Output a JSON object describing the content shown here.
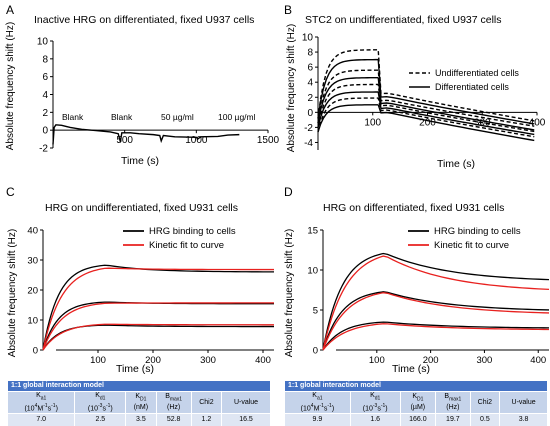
{
  "panels": {
    "A": {
      "letter": "A",
      "title": "Inactive HRG on differentiated, fixed U937 cells",
      "xlabel": "Time (s)",
      "ylabel": "Absolute frequency shift (Hz)",
      "annotations": [
        "Blank",
        "Blank",
        "50 µg/ml",
        "100 µg/ml"
      ]
    },
    "B": {
      "letter": "B",
      "title": "STC2 on undifferentiated, fixed U937 cells",
      "xlabel": "Time (s)",
      "ylabel": "Absolute frequency shift (Hz)",
      "legend": [
        "Undifferentiated cells",
        "Differentiated cells"
      ]
    },
    "C": {
      "letter": "C",
      "title": "HRG on undifferentiated, fixed U931 cells",
      "xlabel": "Time (s)",
      "ylabel": "Absolute frequency shift (Hz)",
      "legend": [
        "HRG binding to cells",
        "Kinetic fit to curve"
      ]
    },
    "D": {
      "letter": "D",
      "title": "HRG on differentiated, fixed U931 cells",
      "xlabel": "Time (s)",
      "ylabel": "Absolute frequency shift (Hz)",
      "legend": [
        "HRG binding to cells",
        "Kinetic fit to curve"
      ]
    }
  },
  "tables": {
    "C": {
      "title": "1:1 global interaction model",
      "values": [
        "7.0",
        "2.5",
        "3.5",
        "52.8",
        "1.2",
        "16.5"
      ]
    },
    "D": {
      "title": "1:1 global interaction model",
      "values": [
        "9.9",
        "1.6",
        "166.0",
        "19.7",
        "0.5",
        "3.8"
      ]
    },
    "units": {
      "ka1": "(10",
      "ka1_sup": "4",
      "ka1_tail": "M",
      "ka1_tail_sup": "-1",
      "ka1_end": "s",
      "ka1_end_sup": "-1",
      "ka1_close": ")",
      "kd1": "(10",
      "kd1_sup": "-3",
      "kd1_tail": "s",
      "kd1_tail_sup": "-1",
      "kd1_close": ")",
      "KD1_C": "(nM)",
      "KD1_D": "(µM)",
      "Bmax1": "(Hz)"
    },
    "headers": {
      "k": "K",
      "a1": "a1",
      "d1": "d1",
      "D1": "D1",
      "B": "B",
      "max1": "max1",
      "chi2": "Chi2",
      "uvalue": "U-value"
    }
  },
  "chart_data": [
    {
      "panel": "A",
      "type": "line",
      "title": "Inactive HRG on differentiated, fixed U937 cells",
      "xlabel": "Time (s)",
      "ylabel": "Absolute frequency shift (Hz)",
      "xlim": [
        0,
        1500
      ],
      "ylim": [
        -2,
        10
      ],
      "xticks": [
        500,
        1000,
        1500
      ],
      "yticks": [
        -2,
        0,
        2,
        4,
        6,
        8,
        10
      ],
      "series": [
        {
          "style": "solid",
          "color": "#000000",
          "points": [
            [
              0,
              -1.6
            ],
            [
              8,
              0.3
            ],
            [
              20,
              0.6
            ],
            [
              60,
              0.55
            ],
            [
              120,
              0.3
            ],
            [
              200,
              0.1
            ],
            [
              300,
              -0.05
            ],
            [
              400,
              -0.2
            ],
            [
              455,
              -0.4
            ],
            [
              470,
              -1.3
            ],
            [
              480,
              -0.3
            ],
            [
              540,
              -0.3
            ],
            [
              600,
              -0.4
            ],
            [
              700,
              -0.5
            ],
            [
              745,
              -0.6
            ],
            [
              755,
              -1.2
            ],
            [
              770,
              -0.6
            ],
            [
              850,
              -0.75
            ],
            [
              1000,
              -0.8
            ],
            [
              1010,
              -1.0
            ],
            [
              1030,
              -0.75
            ],
            [
              1150,
              -0.7
            ],
            [
              1220,
              -0.55
            ],
            [
              1300,
              -0.5
            ]
          ]
        }
      ]
    },
    {
      "panel": "B",
      "type": "line",
      "title": "STC2 on undifferentiated, fixed U937 cells",
      "xlabel": "Time (s)",
      "ylabel": "Absolute frequency shift (Hz)",
      "xlim": [
        0,
        400
      ],
      "ylim": [
        -5,
        10
      ],
      "xticks": [
        100,
        200,
        300,
        400
      ],
      "yticks": [
        -4,
        -2,
        0,
        2,
        4,
        6,
        8,
        10
      ],
      "series": [
        {
          "name": "Undifferentiated cells",
          "style": "dashed",
          "color": "#000000",
          "plateau": [
            8.3,
            5.6,
            3.7,
            1.9
          ],
          "end": [
            -1.2,
            -1.9,
            -2.6,
            -3.3
          ]
        },
        {
          "name": "Differentiated cells",
          "style": "solid",
          "color": "#000000",
          "plateau": [
            7.0,
            4.6,
            2.7,
            1.0
          ],
          "end": [
            -1.6,
            -2.4,
            -3.0,
            -3.8
          ]
        }
      ]
    },
    {
      "panel": "C",
      "type": "line",
      "title": "HRG on undifferentiated, fixed U931 cells",
      "xlabel": "Time (s)",
      "ylabel": "Absolute frequency shift (Hz)",
      "xlim": [
        0,
        420
      ],
      "ylim": [
        0,
        40
      ],
      "xticks": [
        100,
        200,
        300,
        400
      ],
      "yticks": [
        0,
        10,
        20,
        30,
        40
      ],
      "series": [
        {
          "name": "HRG binding to cells",
          "color": "#000000",
          "peak": [
            28.3,
            16.0,
            8.3
          ],
          "end": [
            26.0,
            15.4,
            7.8
          ]
        },
        {
          "name": "Kinetic fit to curve",
          "color": "#e8211f",
          "peak": [
            27.3,
            15.6,
            8.6
          ],
          "end": [
            26.8,
            15.7,
            8.4
          ]
        }
      ]
    },
    {
      "panel": "D",
      "type": "line",
      "title": "HRG on differentiated, fixed U931 cells",
      "xlabel": "Time (s)",
      "ylabel": "Absolute frequency shift (Hz)",
      "xlim": [
        0,
        420
      ],
      "ylim": [
        0,
        15
      ],
      "xticks": [
        100,
        200,
        300,
        400
      ],
      "yticks": [
        0,
        5,
        10,
        15
      ],
      "series": [
        {
          "name": "HRG binding to cells",
          "color": "#000000",
          "peak": [
            12.1,
            7.3,
            3.5
          ],
          "end": [
            8.5,
            4.8,
            2.7
          ]
        },
        {
          "name": "Kinetic fit to curve",
          "color": "#e8211f",
          "peak": [
            11.8,
            7.2,
            3.3
          ],
          "end": [
            7.2,
            4.4,
            2.5
          ]
        }
      ]
    }
  ]
}
